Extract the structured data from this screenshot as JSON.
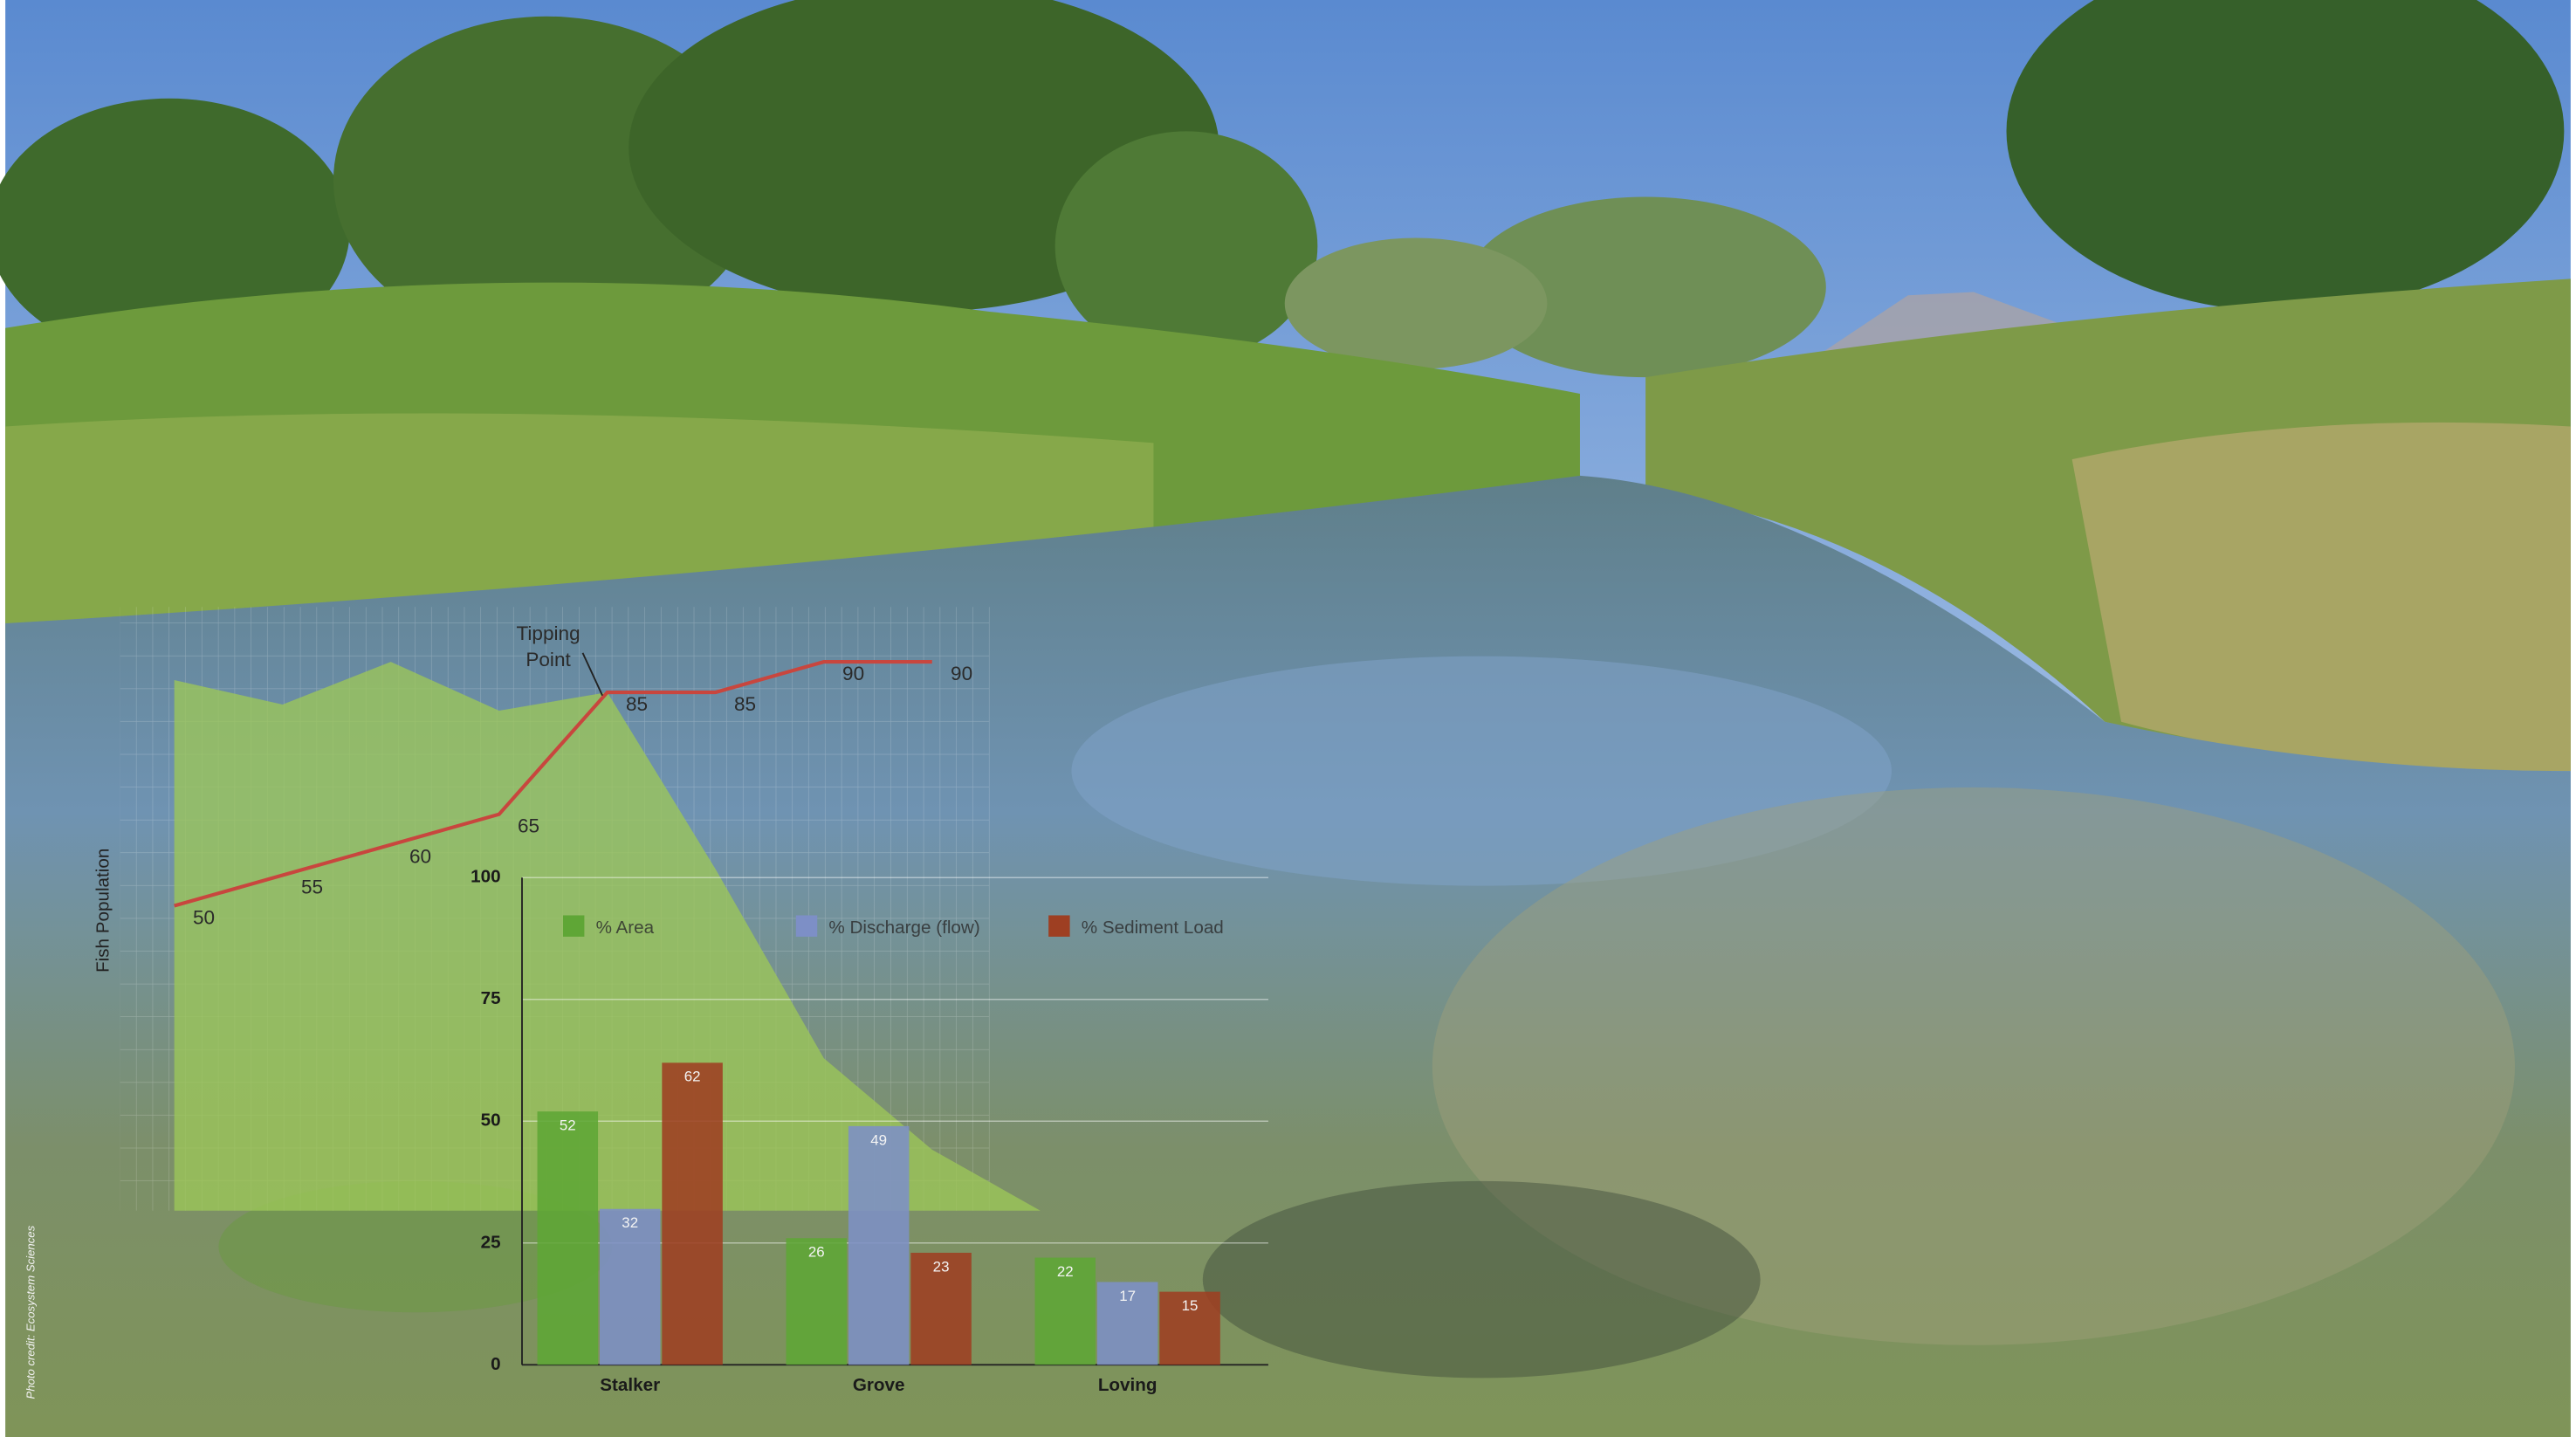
{
  "photo_credit": "Photo credit: Ecosystem Sciences",
  "chart_data": [
    {
      "type": "line",
      "y_label": "Fish Population",
      "annotation": "Tipping Point",
      "ylim": [
        0,
        99
      ],
      "series": [
        {
          "type": "area",
          "color": "#9cc658",
          "values": [
            87,
            83,
            90,
            82,
            85,
            56,
            25,
            10,
            0
          ]
        },
        {
          "type": "line",
          "color": "#c8463e",
          "values": [
            50,
            55,
            60,
            65,
            85,
            85,
            90,
            90,
            null
          ]
        }
      ]
    },
    {
      "type": "bar",
      "categories": [
        "Stalker",
        "Grove",
        "Loving"
      ],
      "ylim": [
        0,
        100
      ],
      "yticks": [
        0,
        25,
        50,
        75,
        100
      ],
      "grid": true,
      "series": [
        {
          "name": "% Area",
          "color": "#5fa636",
          "values": [
            52,
            26,
            22
          ]
        },
        {
          "name": "% Discharge (flow)",
          "color": "#7d8fc6",
          "values": [
            32,
            49,
            17
          ]
        },
        {
          "name": "% Sediment Load",
          "color": "#9e3f22",
          "values": [
            62,
            23,
            15
          ]
        }
      ]
    }
  ]
}
